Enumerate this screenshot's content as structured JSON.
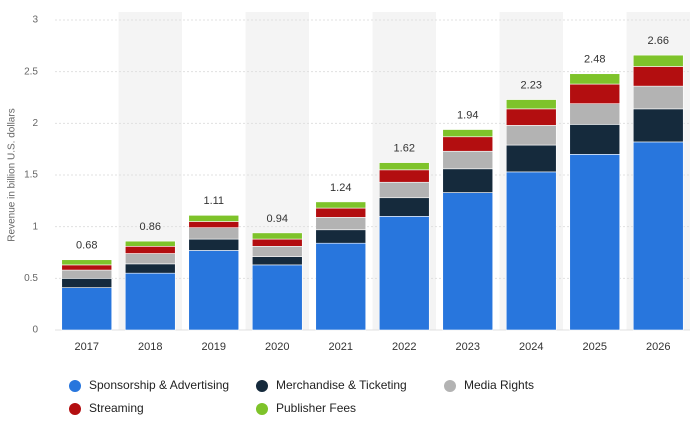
{
  "chart_data": {
    "type": "bar",
    "stacked": true,
    "y_label": "Revenue in billion U.S. dollars",
    "categories": [
      "2017",
      "2018",
      "2019",
      "2020",
      "2021",
      "2022",
      "2023",
      "2024",
      "2025",
      "2026"
    ],
    "series": [
      {
        "name": "Sponsorship & Advertising",
        "color": "#2876dd",
        "values": [
          0.41,
          0.55,
          0.77,
          0.63,
          0.84,
          1.1,
          1.33,
          1.53,
          1.7,
          1.82
        ]
      },
      {
        "name": "Merchandise & Ticketing",
        "color": "#152a3c",
        "values": [
          0.09,
          0.09,
          0.11,
          0.08,
          0.13,
          0.18,
          0.23,
          0.26,
          0.29,
          0.32
        ]
      },
      {
        "name": "Media Rights",
        "color": "#b3b3b3",
        "values": [
          0.08,
          0.1,
          0.11,
          0.1,
          0.12,
          0.15,
          0.17,
          0.19,
          0.2,
          0.22
        ]
      },
      {
        "name": "Streaming",
        "color": "#b30e10",
        "values": [
          0.05,
          0.07,
          0.06,
          0.07,
          0.09,
          0.12,
          0.14,
          0.16,
          0.19,
          0.19
        ]
      },
      {
        "name": "Publisher Fees",
        "color": "#7ec32a",
        "values": [
          0.05,
          0.05,
          0.06,
          0.06,
          0.06,
          0.07,
          0.07,
          0.09,
          0.1,
          0.11
        ]
      }
    ],
    "totals": [
      0.68,
      0.86,
      1.11,
      0.94,
      1.24,
      1.62,
      1.94,
      2.23,
      2.48,
      2.66
    ],
    "ylim": [
      0,
      3
    ],
    "yticks": [
      0,
      0.5,
      1,
      1.5,
      2,
      2.5,
      3
    ],
    "grid": true
  }
}
